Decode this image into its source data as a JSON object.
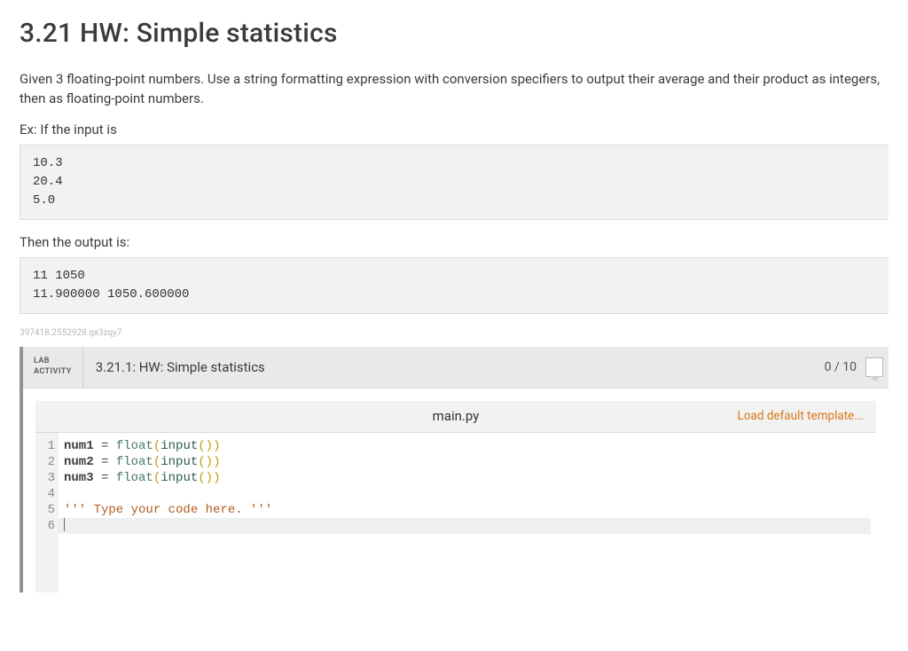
{
  "title": "3.21 HW: Simple statistics",
  "description": "Given 3 floating-point numbers. Use a string formatting expression with conversion specifiers to output their average and their product as integers, then as floating-point numbers.",
  "example_label": "Ex: If the input is",
  "example_input": "10.3\n20.4\n5.0",
  "output_label": "Then the output is:",
  "example_output": "11 1050\n11.900000 1050.600000",
  "hash": "397418.2552928.qx3zqy7",
  "activity": {
    "tag_line1": "LAB",
    "tag_line2": "ACTIVITY",
    "title": "3.21.1: HW: Simple statistics",
    "score": "0 / 10"
  },
  "editor": {
    "filename": "main.py",
    "load_default_label": "Load default template...",
    "line_numbers": [
      "1",
      "2",
      "3",
      "4",
      "5",
      "6"
    ],
    "code": {
      "l1": {
        "var": "num1",
        "op": " = ",
        "type": "float",
        "po": "(",
        "fn": "input",
        "pi": "()",
        "pc": ")"
      },
      "l2": {
        "var": "num2",
        "op": " = ",
        "type": "float",
        "po": "(",
        "fn": "input",
        "pi": "()",
        "pc": ")"
      },
      "l3": {
        "var": "num3",
        "op": " = ",
        "type": "float",
        "po": "(",
        "fn": "input",
        "pi": "()",
        "pc": ")"
      },
      "l5": {
        "str": "''' Type your code here. '''"
      }
    }
  },
  "colors": {
    "page_bg": "#ffffff",
    "text": "#3b3b3b",
    "codeblock_bg": "#f2f2f2",
    "codeblock_border": "#dcdcdc",
    "hash_text": "#b7b7b7",
    "activity_bg": "#e9e9e9",
    "activity_border_left": "#939393",
    "load_link": "#d8781b",
    "builtin_type": "#47776a",
    "builtin_fn": "#2a5c55",
    "paren": "#c59b00",
    "string": "#b35c1e",
    "gutter_text": "#8a8a8a"
  }
}
